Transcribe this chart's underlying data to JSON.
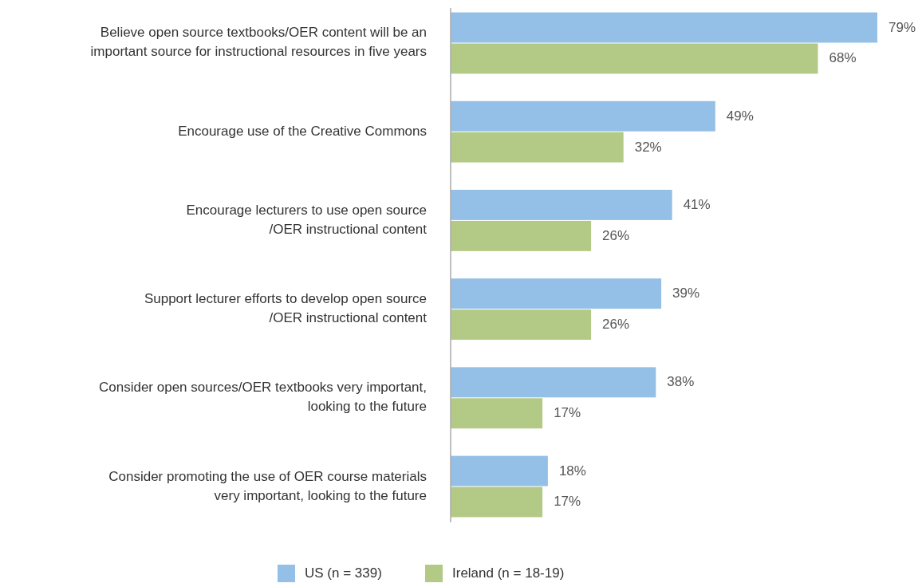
{
  "chart_data": {
    "type": "bar",
    "orientation": "horizontal",
    "categories": [
      "Believe open source textbooks/OER content will be an\nimportant source for instructional resources in five years",
      "Encourage use of the Creative Commons",
      "Encourage lecturers to use open source\n/OER instructional content",
      "Support lecturer efforts to develop open source\n/OER instructional content",
      "Consider open sources/OER textbooks very important,\nlooking to the future",
      "Consider promoting the use of OER course materials\nvery important, looking to the future"
    ],
    "series": [
      {
        "name": "US (n = 339)",
        "color": "#94bfe6",
        "values": [
          79,
          49,
          41,
          39,
          38,
          18
        ],
        "value_labels": [
          "79%",
          "49%",
          "41%",
          "39%",
          "38%",
          "18%"
        ]
      },
      {
        "name": "Ireland (n = 18-19)",
        "color": "#b3c986",
        "values": [
          68,
          32,
          26,
          26,
          17,
          17
        ],
        "value_labels": [
          "68%",
          "32%",
          "26%",
          "26%",
          "17%",
          "17%"
        ]
      }
    ],
    "legend": "bottom",
    "tick_labels": "y"
  }
}
